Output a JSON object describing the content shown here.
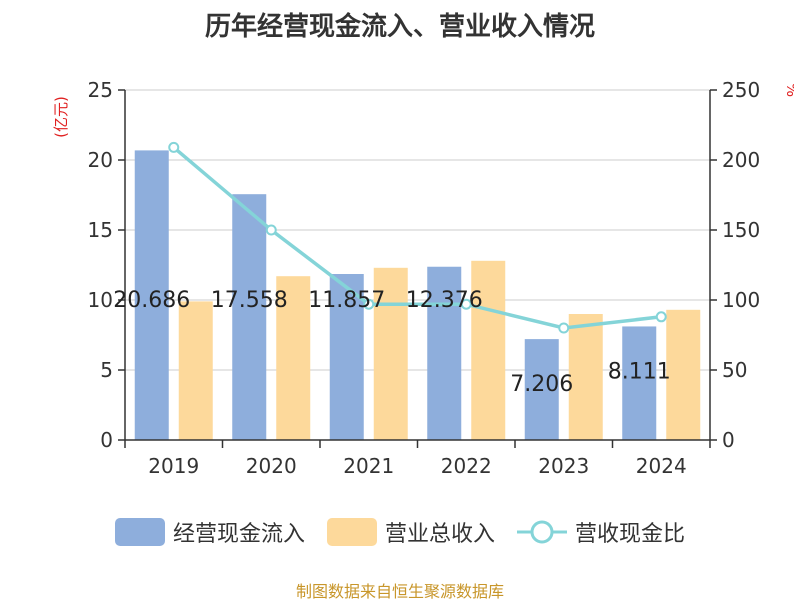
{
  "chart_data": {
    "type": "bar",
    "title": "历年经营现金流入、营业收入情况",
    "categories": [
      "2019",
      "2020",
      "2021",
      "2022",
      "2023",
      "2024"
    ],
    "series": [
      {
        "name": "经营现金流入",
        "type": "bar",
        "axis": "left",
        "color": "#8eaedc",
        "values": [
          20.686,
          17.558,
          11.857,
          12.376,
          7.206,
          8.111
        ]
      },
      {
        "name": "营业总收入",
        "type": "bar",
        "axis": "left",
        "color": "#fdd99b",
        "values": [
          9.9,
          11.7,
          12.3,
          12.8,
          9.0,
          9.3
        ]
      },
      {
        "name": "营收现金比",
        "type": "line",
        "axis": "right",
        "color": "#84d4d8",
        "values": [
          209,
          150,
          97,
          97,
          80,
          88
        ]
      }
    ],
    "data_labels": [
      "20.686",
      "17.558",
      "11.857",
      "12.376",
      "7.206",
      "8.111"
    ],
    "y_left": {
      "label": "(亿元)",
      "min": 0,
      "max": 25,
      "ticks": [
        0,
        5,
        10,
        15,
        20,
        25
      ]
    },
    "y_right": {
      "label": "%",
      "min": 0,
      "max": 250,
      "ticks": [
        0,
        50,
        100,
        150,
        200,
        250
      ]
    },
    "grid": true,
    "legend_position": "bottom"
  },
  "source": "制图数据来自恒生聚源数据库"
}
